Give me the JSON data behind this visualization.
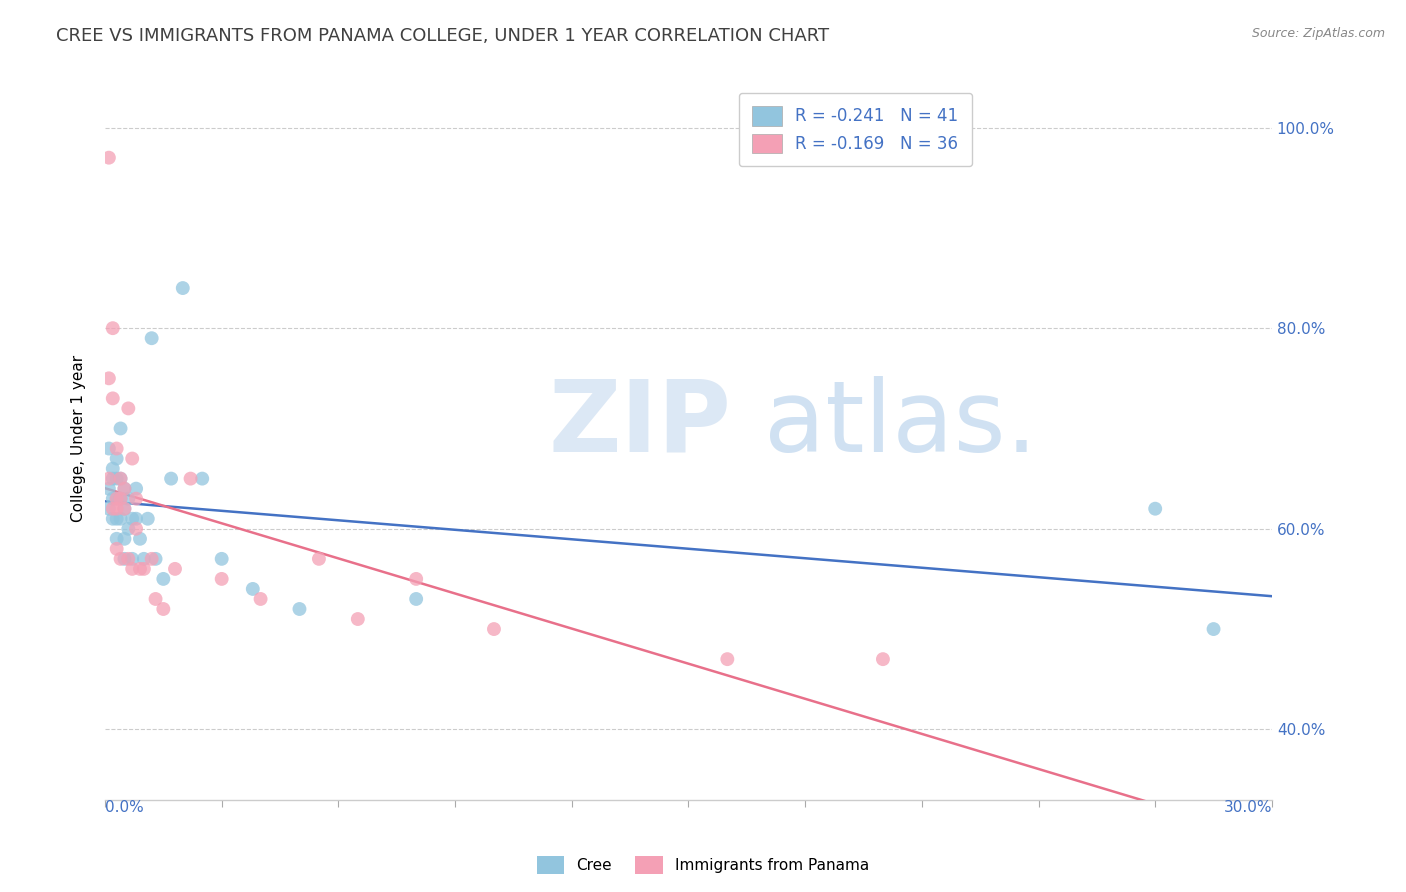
{
  "title": "CREE VS IMMIGRANTS FROM PANAMA COLLEGE, UNDER 1 YEAR CORRELATION CHART",
  "source": "Source: ZipAtlas.com",
  "ylabel": "College, Under 1 year",
  "r_cree": -0.241,
  "n_cree": 41,
  "r_panama": -0.169,
  "n_panama": 36,
  "cree_color": "#92c5de",
  "panama_color": "#f4a0b5",
  "cree_line_color": "#4472c4",
  "panama_line_color": "#e8708a",
  "xlim": [
    0.0,
    0.3
  ],
  "ylim": [
    0.33,
    1.05
  ],
  "right_yticks": [
    0.4,
    0.6,
    0.8,
    1.0
  ],
  "right_yticklabels": [
    "40.0%",
    "60.0%",
    "80.0%",
    "100.0%"
  ],
  "cree_x": [
    0.001,
    0.001,
    0.001,
    0.002,
    0.002,
    0.002,
    0.002,
    0.003,
    0.003,
    0.003,
    0.003,
    0.003,
    0.004,
    0.004,
    0.004,
    0.004,
    0.005,
    0.005,
    0.005,
    0.005,
    0.006,
    0.006,
    0.007,
    0.007,
    0.008,
    0.008,
    0.009,
    0.01,
    0.011,
    0.012,
    0.013,
    0.015,
    0.017,
    0.02,
    0.025,
    0.03,
    0.038,
    0.05,
    0.08,
    0.27,
    0.285
  ],
  "cree_y": [
    0.64,
    0.62,
    0.68,
    0.66,
    0.65,
    0.63,
    0.61,
    0.67,
    0.65,
    0.63,
    0.61,
    0.59,
    0.65,
    0.63,
    0.61,
    0.7,
    0.64,
    0.62,
    0.59,
    0.57,
    0.63,
    0.6,
    0.61,
    0.57,
    0.64,
    0.61,
    0.59,
    0.57,
    0.61,
    0.79,
    0.57,
    0.55,
    0.65,
    0.84,
    0.65,
    0.57,
    0.54,
    0.52,
    0.53,
    0.62,
    0.5
  ],
  "panama_x": [
    0.001,
    0.001,
    0.001,
    0.002,
    0.002,
    0.002,
    0.003,
    0.003,
    0.003,
    0.003,
    0.004,
    0.004,
    0.004,
    0.005,
    0.005,
    0.006,
    0.006,
    0.007,
    0.007,
    0.008,
    0.008,
    0.009,
    0.01,
    0.012,
    0.013,
    0.015,
    0.018,
    0.022,
    0.03,
    0.04,
    0.055,
    0.065,
    0.08,
    0.1,
    0.16,
    0.2
  ],
  "panama_y": [
    0.97,
    0.75,
    0.65,
    0.8,
    0.73,
    0.62,
    0.68,
    0.63,
    0.62,
    0.58,
    0.65,
    0.63,
    0.57,
    0.64,
    0.62,
    0.72,
    0.57,
    0.67,
    0.56,
    0.63,
    0.6,
    0.56,
    0.56,
    0.57,
    0.53,
    0.52,
    0.56,
    0.65,
    0.55,
    0.53,
    0.57,
    0.51,
    0.55,
    0.5,
    0.47,
    0.47
  ]
}
